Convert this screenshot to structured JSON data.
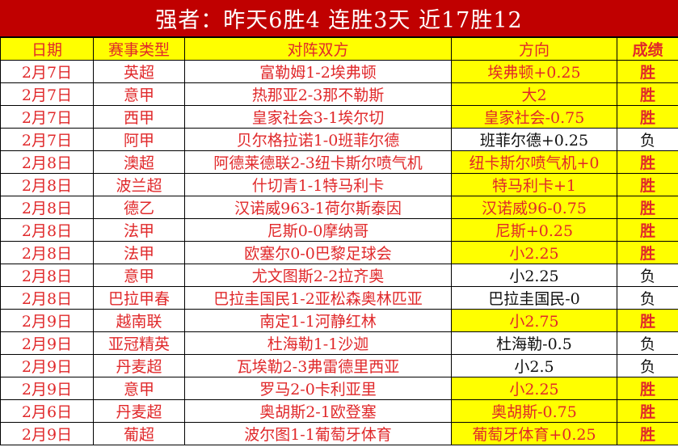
{
  "title": "强者：昨天6胜4  连胜3天  近17胜12",
  "headers": [
    "日期",
    "赛事类型",
    "对阵双方",
    "方向",
    "成绩"
  ],
  "colors": {
    "title_bg": "#c00000",
    "highlight": "#ffff00",
    "text_red": "#e0282a",
    "text_black": "#111111"
  },
  "rows": [
    {
      "date": "2月7日",
      "league": "英超",
      "match": "富勒姆1-2埃弗顿",
      "pick": "埃弗顿+0.25",
      "result": "胜"
    },
    {
      "date": "2月7日",
      "league": "意甲",
      "match": "热那亚2-3那不勒斯",
      "pick": "大2",
      "result": "胜"
    },
    {
      "date": "2月7日",
      "league": "西甲",
      "match": "皇家社会3-1埃尔切",
      "pick": "皇家社会-0.75",
      "result": "胜"
    },
    {
      "date": "2月7日",
      "league": "阿甲",
      "match": "贝尔格拉诺1-0班菲尔德",
      "pick": "班菲尔德+0.25",
      "result": "负"
    },
    {
      "date": "2月8日",
      "league": "澳超",
      "match": "阿德莱德联2-3纽卡斯尔喷气机",
      "pick": "纽卡斯尔喷气机+0",
      "result": "胜"
    },
    {
      "date": "2月8日",
      "league": "波兰超",
      "match": "什切青1-1特马利卡",
      "pick": "特马利卡+1",
      "result": "胜"
    },
    {
      "date": "2月8日",
      "league": "德乙",
      "match": "汉诺威963-1荷尔斯泰因",
      "pick": "汉诺威96-0.75",
      "result": "胜"
    },
    {
      "date": "2月8日",
      "league": "法甲",
      "match": "尼斯0-0摩纳哥",
      "pick": "尼斯+0.25",
      "result": "胜"
    },
    {
      "date": "2月8日",
      "league": "法甲",
      "match": "欧塞尔0-0巴黎足球会",
      "pick": "小2.25",
      "result": "胜"
    },
    {
      "date": "2月8日",
      "league": "意甲",
      "match": "尤文图斯2-2拉齐奥",
      "pick": "小2.25",
      "result": "负"
    },
    {
      "date": "2月8日",
      "league": "巴拉甲春",
      "match": "巴拉圭国民1-2亚松森奥林匹亚",
      "pick": "巴拉圭国民-0",
      "result": "负"
    },
    {
      "date": "2月9日",
      "league": "越南联",
      "match": "南定1-1河静红林",
      "pick": "小2.75",
      "result": "胜"
    },
    {
      "date": "2月9日",
      "league": "亚冠精英",
      "match": "杜海勒1-1沙迦",
      "pick": "杜海勒-0.5",
      "result": "负"
    },
    {
      "date": "2月9日",
      "league": "丹麦超",
      "match": "瓦埃勒2-3弗雷德里西亚",
      "pick": "小2.5",
      "result": "负"
    },
    {
      "date": "2月9日",
      "league": "意甲",
      "match": "罗马2-0卡利亚里",
      "pick": "小2.25",
      "result": "胜"
    },
    {
      "date": "2月6日",
      "league": "丹麦超",
      "match": "奥胡斯2-1欧登塞",
      "pick": "奥胡斯-0.75",
      "result": "胜"
    },
    {
      "date": "2月9日",
      "league": "葡超",
      "match": "波尔图1-1葡萄牙体育",
      "pick": "葡萄牙体育+0.25",
      "result": "胜"
    }
  ]
}
